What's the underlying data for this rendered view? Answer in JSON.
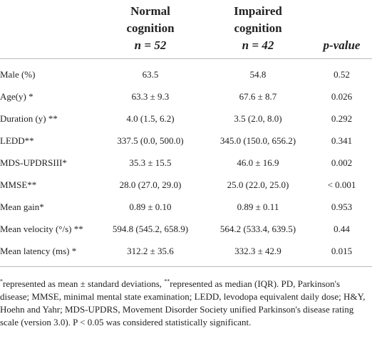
{
  "table": {
    "header": [
      {
        "lines": []
      },
      {
        "lines": [
          "Normal",
          "cognition"
        ],
        "n": "n = 52"
      },
      {
        "lines": [
          "Impaired",
          "cognition"
        ],
        "n": "n = 42"
      },
      {
        "lines": [
          "p-value"
        ]
      }
    ],
    "rows": [
      [
        "Male (%)",
        "63.5",
        "54.8",
        "0.52"
      ],
      [
        "Age(y) *",
        "63.3 ± 9.3",
        "67.6 ± 8.7",
        "0.026"
      ],
      [
        "Duration (y) **",
        "4.0 (1.5, 6.2)",
        "3.5 (2.0, 8.0)",
        "0.292"
      ],
      [
        "LEDD**",
        "337.5 (0.0, 500.0)",
        "345.0 (150.0, 656.2)",
        "0.341"
      ],
      [
        "MDS-UPDRSIII*",
        "35.3 ± 15.5",
        "46.0 ± 16.9",
        "0.002"
      ],
      [
        "MMSE**",
        "28.0 (27.0, 29.0)",
        "25.0 (22.0, 25.0)",
        "< 0.001"
      ],
      [
        "Mean gain*",
        "0.89 ± 0.10",
        "0.89 ± 0.11",
        "0.953"
      ],
      [
        "Mean velocity (°/s) **",
        "594.8 (545.2, 658.9)",
        "564.2 (533.4, 639.5)",
        "0.44"
      ],
      [
        "Mean latency (ms) *",
        "312.2 ± 35.6",
        "332.3 ± 42.9",
        "0.015"
      ]
    ]
  },
  "footnote": {
    "mark1": "*",
    "text1": "represented as mean ± standard deviations, ",
    "mark2": "**",
    "text2": "represented as median (IQR). PD, Parkinson's disease; MMSE, minimal mental state examination; LEDD, levodopa equivalent daily dose; H&Y, Hoehn and Yahr; MDS-UPDRS, Movement Disorder Society unified Parkinson's disease rating scale (version 3.0). P < 0.05 was considered statistically significant."
  }
}
